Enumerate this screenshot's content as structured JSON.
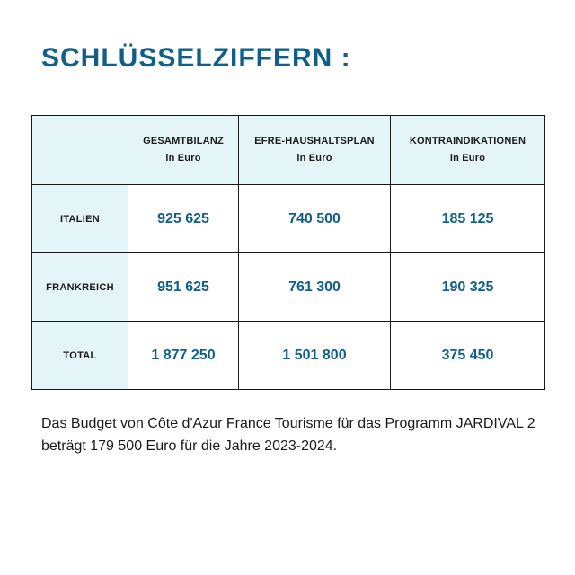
{
  "title": "SCHLÜSSELZIFFERN :",
  "table": {
    "columns": [
      {
        "label": "GESAMTBILANZ",
        "unit": "in Euro"
      },
      {
        "label": "EFRE-HAUSHALTSPLAN",
        "unit": "in Euro"
      },
      {
        "label": "KONTRAINDIKATIONEN",
        "unit": "in Euro"
      }
    ],
    "rows": [
      {
        "label": "ITALIEN",
        "values": [
          "925 625",
          "740 500",
          "185 125"
        ]
      },
      {
        "label": "FRANKREICH",
        "values": [
          "951 625",
          "761 300",
          "190 325"
        ]
      },
      {
        "label": "TOTAL",
        "values": [
          "1 877 250",
          "1 501 800",
          "375 450"
        ]
      }
    ]
  },
  "note": "Das Budget von Côte d'Azur France Tourisme für das Programm JARDIVAL 2 beträgt 179 500 Euro für die Jahre 2023-2024.",
  "colors": {
    "accent": "#0f5f8a",
    "header_fill": "#e3f5f7",
    "border": "#1a1a1a"
  }
}
